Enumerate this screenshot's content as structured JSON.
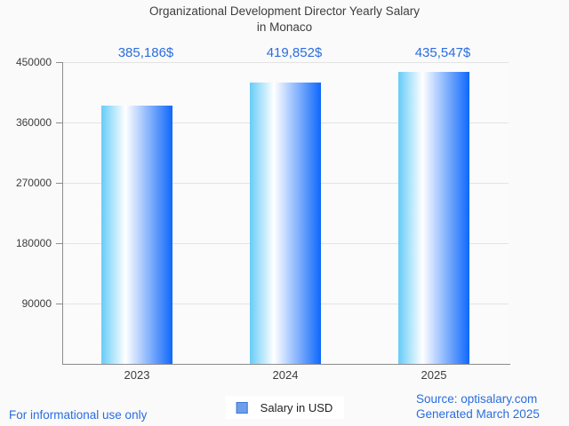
{
  "title": {
    "line1": "Organizational Development Director Yearly Salary",
    "line2": "in Monaco"
  },
  "chart_data": {
    "type": "bar",
    "title": "Organizational Development Director Yearly Salary in Monaco",
    "categories": [
      "2023",
      "2024",
      "2025"
    ],
    "values": [
      385186,
      419852,
      435547
    ],
    "value_labels": [
      "385,186$",
      "419,852$",
      "435,547$"
    ],
    "xlabel": "",
    "ylabel": "",
    "ylim": [
      0,
      450000
    ],
    "yticks": [
      90000,
      180000,
      270000,
      360000,
      450000
    ],
    "grid": true,
    "legend": {
      "label": "Salary in USD",
      "position": "bottom-center"
    }
  },
  "footer": {
    "left_note": "For informational use only",
    "source": "Source: optisalary.com",
    "generated": "Generated March 2025"
  },
  "colors": {
    "blue_text": "#2a6ddf",
    "bar_gradient_left": "#67ccf8",
    "bar_gradient_mid": "#ffffff",
    "bar_gradient_right": "#0e68fb",
    "legend_swatch_fill": "#6d9eeb",
    "legend_swatch_border": "#3d77d1"
  }
}
